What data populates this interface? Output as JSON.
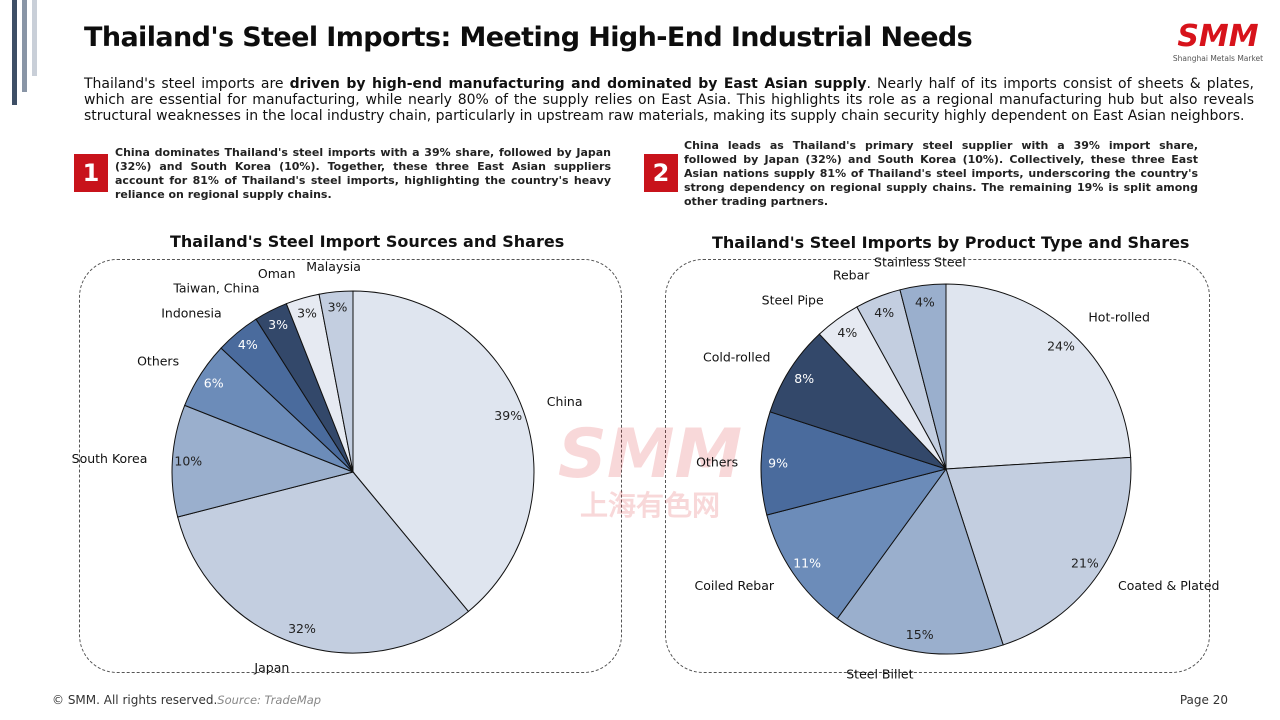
{
  "title": "Thailand's Steel Imports: Meeting High-End Industrial Needs",
  "logo": {
    "text": "SMM",
    "subtitle": "Shanghai Metals Market"
  },
  "watermark": {
    "text": "SMM",
    "subtitle": "上海有色网"
  },
  "intro": {
    "before": "Thailand's steel imports are ",
    "bold": "driven by high-end manufacturing and dominated by East Asian supply",
    "after": ". Nearly half of its imports consist of sheets & plates, which are essential for manufacturing, while nearly 80% of the supply relies on East Asia. This highlights its role as a regional manufacturing hub but also reveals structural weaknesses in the local industry chain, particularly in upstream raw materials, making its supply chain security highly dependent on East Asian neighbors."
  },
  "notes": [
    {
      "number": "1",
      "text": "China dominates Thailand's steel imports with a 39% share, followed by Japan (32%) and South Korea (10%). Together, these three East Asian suppliers account for 81% of Thailand's steel imports, highlighting the country's heavy reliance on regional supply chains."
    },
    {
      "number": "2",
      "text": "China leads as Thailand's primary steel supplier with a 39% import share, followed by Japan (32%) and South Korea (10%). Collectively, these three East Asian nations supply 81% of Thailand's steel imports, underscoring the country's strong dependency on regional supply chains. The remaining 19% is split among other trading partners."
    }
  ],
  "chart_data": [
    {
      "type": "pie",
      "title": "Thailand's Steel Import Sources and Shares",
      "slices": [
        {
          "label": "China",
          "value": 39,
          "value_label": "39%",
          "color": "#dfe5ef"
        },
        {
          "label": "Japan",
          "value": 32,
          "value_label": "32%",
          "color": "#c3cee0"
        },
        {
          "label": "South Korea",
          "value": 10,
          "value_label": "10%",
          "color": "#9aafcd"
        },
        {
          "label": "Others",
          "value": 6,
          "value_label": "6%",
          "color": "#6c8cb9"
        },
        {
          "label": "Indonesia",
          "value": 4,
          "value_label": "4%",
          "color": "#4a6b9d"
        },
        {
          "label": "Taiwan, China",
          "value": 3,
          "value_label": "3%",
          "color": "#33486a"
        },
        {
          "label": "Oman",
          "value": 3,
          "value_label": "3%",
          "color": "#e6eaf2"
        },
        {
          "label": "Malaysia",
          "value": 3,
          "value_label": "3%",
          "color": "#c3cee0"
        }
      ]
    },
    {
      "type": "pie",
      "title": "Thailand's Steel Imports by Product Type and Shares",
      "slices": [
        {
          "label": "Hot-rolled",
          "value": 24,
          "value_label": "24%",
          "color": "#dfe5ef"
        },
        {
          "label": "Coated & Plated",
          "value": 21,
          "value_label": "21%",
          "color": "#c3cee0"
        },
        {
          "label": "Steel Billet",
          "value": 15,
          "value_label": "15%",
          "color": "#9aafcd"
        },
        {
          "label": "Coiled Rebar",
          "value": 11,
          "value_label": "11%",
          "color": "#6c8cb9"
        },
        {
          "label": "Others",
          "value": 9,
          "value_label": "9%",
          "color": "#4a6b9d"
        },
        {
          "label": "Cold-rolled",
          "value": 8,
          "value_label": "8%",
          "color": "#33486a"
        },
        {
          "label": "Steel Pipe",
          "value": 4,
          "value_label": "4%",
          "color": "#e6eaf2"
        },
        {
          "label": "Rebar",
          "value": 4,
          "value_label": "4%",
          "color": "#c3cee0"
        },
        {
          "label": "Stainless Steel",
          "value": 4,
          "value_label": "4%",
          "color": "#9aafcd"
        }
      ]
    }
  ],
  "footer": {
    "copyright": "© SMM. All rights reserved.",
    "source": "Source: TradeMap",
    "page": "Page 20"
  }
}
